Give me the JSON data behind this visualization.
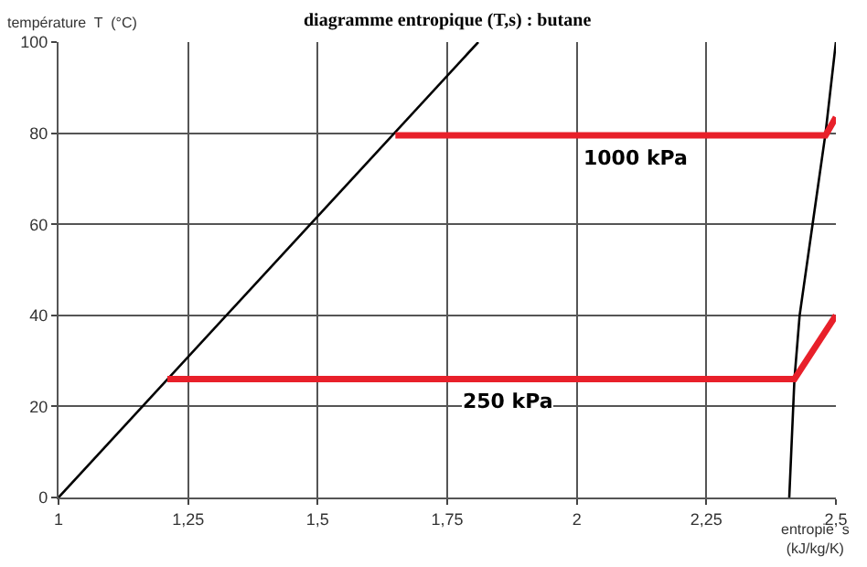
{
  "chart_data": {
    "type": "line",
    "title": "diagramme entropique (T,s) : butane",
    "xlabel": "entropie  s\n(kJ/kg/K)",
    "ylabel": "température  T  (°C)",
    "xlim": [
      1,
      2.5
    ],
    "ylim": [
      0,
      100
    ],
    "xticks": [
      1,
      {
        "value": 1.25,
        "label": "1,25"
      },
      {
        "value": 1.5,
        "label": "1,5"
      },
      {
        "value": 1.75,
        "label": "1,75"
      },
      2,
      {
        "value": 2.25,
        "label": "2,25"
      },
      {
        "value": 2.5,
        "label": "2,5"
      }
    ],
    "yticks": [
      0,
      20,
      40,
      60,
      80,
      100
    ],
    "grid": true,
    "legend": false,
    "marker": "none",
    "series": [
      {
        "color": "#000000",
        "x": [
          1,
          1.81
        ],
        "values": [
          0,
          100
        ]
      },
      {
        "color": "#000000",
        "x": [
          2.41,
          2.42,
          2.43,
          2.455,
          2.48,
          2.5
        ],
        "values": [
          0,
          26,
          40,
          60,
          80,
          100
        ]
      },
      {
        "name": "1000 kPa",
        "color": "#e8202a",
        "x": [
          1.65,
          2.48,
          2.5
        ],
        "values": [
          79.5,
          79.5,
          83.5
        ]
      },
      {
        "name": "250 kPa",
        "color": "#e8202a",
        "x": [
          1.21,
          2.42,
          2.5
        ],
        "values": [
          26,
          26,
          40
        ]
      }
    ]
  }
}
